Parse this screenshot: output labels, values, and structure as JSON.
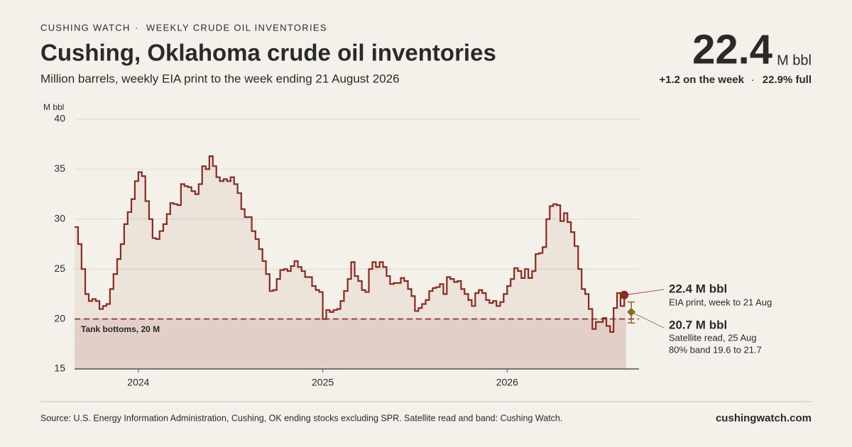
{
  "header": {
    "kicker": "CUSHING WATCH",
    "kicker_section": "WEEKLY CRUDE OIL INVENTORIES",
    "headline_value": 22.4,
    "headline_unit": "M bbl",
    "change": "+1.2 on the week",
    "fill": "22.9% full"
  },
  "footer": {
    "source": "Source: U.S. Energy Information Administration, Cushing, OK ending stocks excluding SPR. Satellite read and band: Cushing Watch.",
    "brand": "cushingwatch.com"
  },
  "chart_data": {
    "type": "step",
    "title": "Cushing, Oklahoma crude oil inventories",
    "subtitle": "Million barrels, weekly EIA print to the week ending 21 August 2026",
    "y_label": "M bbl",
    "xlim": [
      2023.654,
      2026.715
    ],
    "xticks": [
      2024,
      2025,
      2026
    ],
    "ylim": [
      15,
      40
    ],
    "yticks": [
      15,
      20,
      25,
      30,
      35,
      40
    ],
    "grid": true,
    "color": "#8b2a1f",
    "x": [
      2023.654,
      2023.673,
      2023.692,
      2023.712,
      2023.731,
      2023.75,
      2023.769,
      2023.789,
      2023.808,
      2023.827,
      2023.846,
      2023.865,
      2023.885,
      2023.904,
      2023.923,
      2023.942,
      2023.962,
      2023.981,
      2024.0,
      2024.019,
      2024.038,
      2024.058,
      2024.077,
      2024.096,
      2024.115,
      2024.135,
      2024.154,
      2024.173,
      2024.192,
      2024.212,
      2024.231,
      2024.25,
      2024.269,
      2024.288,
      2024.308,
      2024.327,
      2024.346,
      2024.365,
      2024.385,
      2024.404,
      2024.423,
      2024.442,
      2024.462,
      2024.481,
      2024.5,
      2024.519,
      2024.538,
      2024.558,
      2024.577,
      2024.596,
      2024.615,
      2024.635,
      2024.654,
      2024.673,
      2024.692,
      2024.712,
      2024.731,
      2024.75,
      2024.769,
      2024.789,
      2024.808,
      2024.827,
      2024.846,
      2024.865,
      2024.885,
      2024.904,
      2024.923,
      2024.942,
      2024.962,
      2024.981,
      2025.0,
      2025.019,
      2025.038,
      2025.058,
      2025.077,
      2025.096,
      2025.115,
      2025.135,
      2025.154,
      2025.173,
      2025.192,
      2025.212,
      2025.231,
      2025.25,
      2025.269,
      2025.288,
      2025.308,
      2025.327,
      2025.346,
      2025.365,
      2025.385,
      2025.404,
      2025.423,
      2025.442,
      2025.462,
      2025.481,
      2025.5,
      2025.519,
      2025.538,
      2025.558,
      2025.577,
      2025.596,
      2025.615,
      2025.635,
      2025.654,
      2025.673,
      2025.692,
      2025.712,
      2025.731,
      2025.75,
      2025.769,
      2025.789,
      2025.808,
      2025.827,
      2025.846,
      2025.865,
      2025.885,
      2025.904,
      2025.923,
      2025.942,
      2025.962,
      2025.981,
      2026.0,
      2026.019,
      2026.038,
      2026.058,
      2026.077,
      2026.096,
      2026.115,
      2026.135,
      2026.154,
      2026.173,
      2026.192,
      2026.212,
      2026.231,
      2026.25,
      2026.269,
      2026.288,
      2026.308,
      2026.327,
      2026.346,
      2026.365,
      2026.385,
      2026.404,
      2026.423,
      2026.442,
      2026.462,
      2026.481,
      2026.5,
      2026.519,
      2026.538,
      2026.558,
      2026.577,
      2026.596,
      2026.615,
      2026.635
    ],
    "values": [
      29.2,
      27.5,
      25,
      22.5,
      21.8,
      22,
      21.8,
      21,
      21.3,
      21.5,
      23,
      24.5,
      26,
      27.5,
      29.5,
      30.7,
      32,
      33.8,
      34.7,
      34.3,
      31.8,
      30,
      28.1,
      28,
      28.8,
      29.5,
      30.5,
      31.6,
      31.5,
      31.4,
      33.5,
      33.3,
      33.2,
      32.8,
      32.5,
      33.5,
      35.3,
      35,
      36.3,
      35.3,
      34.2,
      33.8,
      34,
      33.8,
      34.2,
      33.5,
      32.6,
      31,
      30.2,
      30.2,
      28.8,
      28,
      27,
      25.8,
      24.5,
      22.8,
      22.9,
      24,
      24.9,
      25,
      24.8,
      25.3,
      25.8,
      25.2,
      24.8,
      24.2,
      24.2,
      23.3,
      22.9,
      22.7,
      20,
      20.9,
      20.7,
      20.9,
      21,
      21.8,
      22.8,
      24,
      25.7,
      24.3,
      23.8,
      22.9,
      22.7,
      25,
      25.7,
      25.2,
      25.7,
      25.2,
      24.3,
      23.5,
      23.6,
      23.6,
      24.1,
      23.8,
      23,
      22.3,
      20.8,
      21.1,
      21.5,
      21.9,
      22.8,
      23.1,
      23.2,
      23.5,
      22.5,
      24.2,
      24,
      23.7,
      23.8,
      23,
      22.5,
      21.9,
      21.3,
      22.6,
      22.9,
      22.6,
      21.9,
      21.6,
      21.8,
      21.3,
      21.7,
      22.5,
      23.3,
      24,
      25.1,
      24.8,
      24.1,
      25,
      24.1,
      24.8,
      26.5,
      26.6,
      27.2,
      30,
      31.3,
      31.5,
      31.4,
      29.8,
      30.6,
      29.7,
      28.7,
      27.3,
      25,
      23,
      22.5,
      21,
      19,
      19.7,
      19.7,
      20.1,
      19.3,
      18.7,
      21.1,
      22.6,
      21.3,
      22.4
    ],
    "reference": {
      "value": 20,
      "label": "Tank bottoms, 20 M"
    },
    "last_annotation": {
      "value_text": "22.4 M bbl",
      "note": "EIA print, week to 21 Aug"
    },
    "satellite": {
      "x": 2026.673,
      "value": 20.7,
      "low": 19.6,
      "high": 21.7,
      "color": "#8a6a1c",
      "value_text": "20.7 M bbl",
      "note": "Satellite read, 25 Aug",
      "band_note": "80% band 19.6 to 21.7"
    }
  }
}
